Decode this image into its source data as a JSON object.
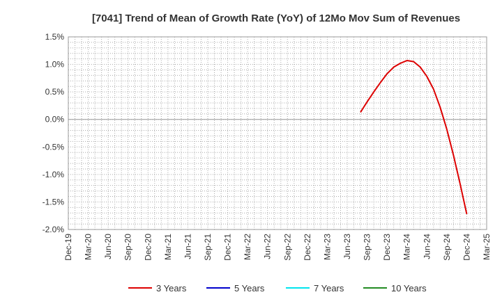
{
  "chart_data": {
    "type": "line",
    "title": "[7041]  Trend of Mean of Growth Rate (YoY) of 12Mo Mov Sum of Revenues",
    "xlabel": "",
    "ylabel": "",
    "x_ticks": [
      "Dec-19",
      "Mar-20",
      "Jun-20",
      "Sep-20",
      "Dec-20",
      "Mar-21",
      "Jun-21",
      "Sep-21",
      "Dec-21",
      "Mar-22",
      "Jun-22",
      "Sep-22",
      "Dec-22",
      "Mar-23",
      "Jun-23",
      "Sep-23",
      "Dec-23",
      "Mar-24",
      "Jun-24",
      "Sep-24",
      "Dec-24",
      "Mar-25"
    ],
    "y_ticks": [
      "1.5%",
      "1.0%",
      "0.5%",
      "0.0%",
      "-0.5%",
      "-1.0%",
      "-1.5%",
      "-2.0%"
    ],
    "y_tick_values": [
      1.5,
      1.0,
      0.5,
      0.0,
      -0.5,
      -1.0,
      -1.5,
      -2.0
    ],
    "ylim": [
      -2.0,
      1.5
    ],
    "y_unit": "%",
    "grid": true,
    "legend_position": "bottom",
    "series": [
      {
        "name": "3 Years",
        "color": "#dd0000",
        "x": [
          "Aug-23",
          "Sep-23",
          "Oct-23",
          "Nov-23",
          "Dec-23",
          "Jan-24",
          "Feb-24",
          "Mar-24",
          "Apr-24",
          "May-24",
          "Jun-24",
          "Jul-24",
          "Aug-24",
          "Sep-24",
          "Oct-24",
          "Nov-24",
          "Dec-24"
        ],
        "values": [
          0.13,
          0.32,
          0.5,
          0.67,
          0.83,
          0.95,
          1.02,
          1.07,
          1.05,
          0.95,
          0.78,
          0.55,
          0.22,
          -0.18,
          -0.65,
          -1.17,
          -1.72
        ]
      },
      {
        "name": "5 Years",
        "color": "#0000cc",
        "x": [],
        "values": []
      },
      {
        "name": "7 Years",
        "color": "#00e5ee",
        "x": [],
        "values": []
      },
      {
        "name": "10 Years",
        "color": "#228b22",
        "x": [],
        "values": []
      }
    ]
  }
}
